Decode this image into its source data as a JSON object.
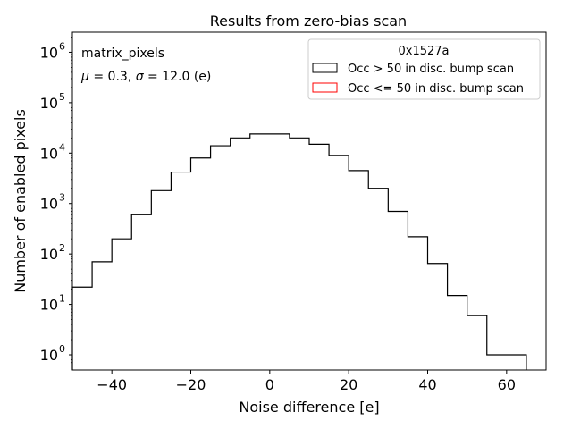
{
  "chart_data": {
    "type": "histogram",
    "title": "Results from zero-bias scan",
    "xlabel": "Noise difference [e]",
    "ylabel": "Number of enabled pixels",
    "xlim": [
      -50,
      70
    ],
    "ylim": [
      0.5,
      2500000
    ],
    "yscale": "log",
    "xticks": [
      -40,
      -20,
      0,
      20,
      40,
      60
    ],
    "xtick_labels": [
      "−40",
      "−20",
      "0",
      "20",
      "40",
      "60"
    ],
    "yticks": [
      1,
      10,
      100,
      1000,
      10000,
      100000,
      1000000
    ],
    "ytick_labels": [
      {
        "base": "10",
        "exp": "0"
      },
      {
        "base": "10",
        "exp": "1"
      },
      {
        "base": "10",
        "exp": "2"
      },
      {
        "base": "10",
        "exp": "3"
      },
      {
        "base": "10",
        "exp": "4"
      },
      {
        "base": "10",
        "exp": "5"
      },
      {
        "base": "10",
        "exp": "6"
      }
    ],
    "bin_edges": [
      -50,
      -45,
      -40,
      -35,
      -30,
      -25,
      -20,
      -15,
      -10,
      -5,
      0,
      5,
      10,
      15,
      20,
      25,
      30,
      35,
      40,
      45,
      50,
      55,
      60,
      65
    ],
    "series": [
      {
        "name": "Occ > 50 in disc. bump scan",
        "color": "#000000",
        "values": [
          22,
          70,
          200,
          600,
          1800,
          4200,
          8000,
          14000,
          20000,
          24000,
          24000,
          20000,
          15000,
          9000,
          4500,
          2000,
          700,
          220,
          65,
          15,
          6,
          1,
          1
        ]
      },
      {
        "name": "Occ <= 50 in disc. bump scan",
        "color": "#ff0000",
        "values": []
      }
    ],
    "legend": {
      "title": "0x1527a",
      "location": "upper right",
      "entries": [
        "Occ > 50 in disc. bump scan",
        "Occ <= 50 in disc. bump scan"
      ]
    },
    "annotations": {
      "line1": "matrix_pixels",
      "line2_mu_symbol": "μ",
      "line2_mu_eq": " = 0.3, ",
      "line2_sigma_symbol": "σ",
      "line2_sigma_eq": " = 12.0 (e)"
    }
  }
}
